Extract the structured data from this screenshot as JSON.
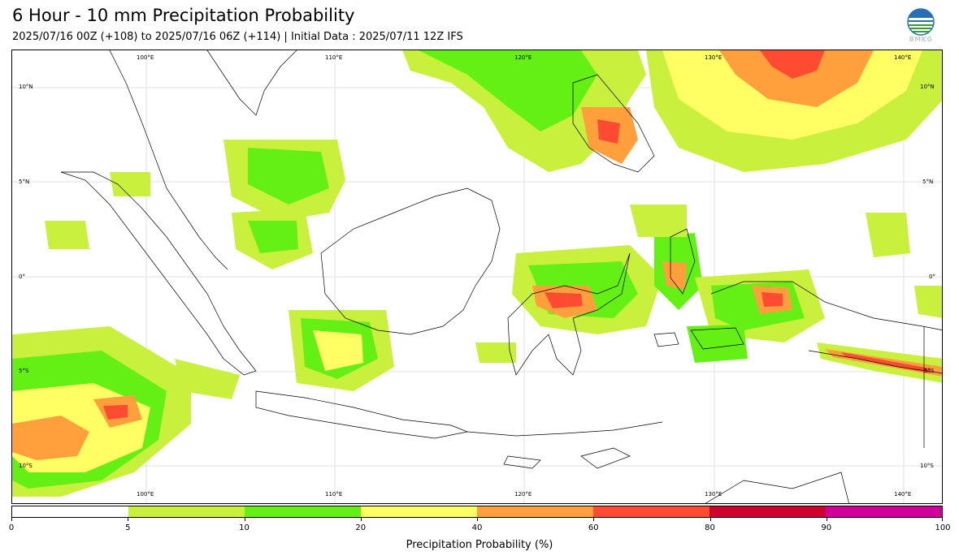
{
  "header": {
    "title": "6 Hour - 10 mm Precipitation Probability",
    "subtitle": "2025/07/16 00Z (+108) to 2025/07/16 06Z (+114) | Initial Data : 2025/07/11 12Z IFS",
    "logo_text": "BMKG"
  },
  "map": {
    "lon_labels": [
      "100°E",
      "110°E",
      "120°E",
      "130°E",
      "140°E"
    ],
    "lat_labels": [
      "10°N",
      "5°N",
      "0°",
      "5°S",
      "10°S"
    ],
    "gridlines": true
  },
  "colorbar": {
    "title": "Precipitation Probability (%)",
    "tick_labels": [
      "0",
      "5",
      "10",
      "20",
      "40",
      "60",
      "80",
      "90",
      "100"
    ],
    "colors": [
      "#ffffff",
      "#c8f03c",
      "#64f014",
      "#ffff64",
      "#ffa03c",
      "#ff4b32",
      "#d2002d",
      "#d2009b"
    ]
  }
}
